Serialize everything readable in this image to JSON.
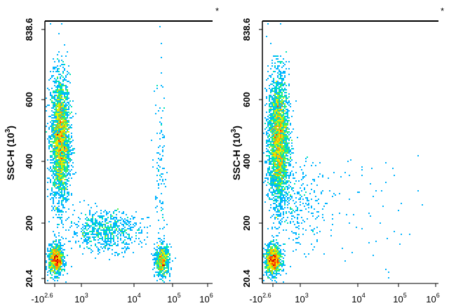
{
  "chart_data": [
    {
      "type": "scatter",
      "ylabel": "SSC-H (10³)",
      "ylabel_base": "SSC-H (10",
      "ylabel_exp": "3",
      "ylabel_close": ")",
      "y_ticks": [
        "838.6",
        "600",
        "400",
        "200",
        "20.4"
      ],
      "x_ticks": [
        {
          "base": "-10",
          "exp": "2.6"
        },
        {
          "base": "10",
          "exp": "3"
        },
        {
          "base": "10",
          "exp": "4"
        },
        {
          "base": "10",
          "exp": "5"
        },
        {
          "base": "10",
          "exp": "6"
        }
      ],
      "x_scale": "log",
      "ylim": [
        20.4,
        838.6
      ],
      "corner_mark": "*",
      "populations": [
        {
          "x": 400,
          "y": 470,
          "sx": 0.09,
          "sy": 105,
          "n": 2600
        },
        {
          "x": 330,
          "y": 80,
          "sx": 0.07,
          "sy": 24,
          "n": 900
        },
        {
          "x": 2900,
          "y": 175,
          "sx": 0.33,
          "sy": 32,
          "n": 700
        },
        {
          "x": 35000,
          "y": 78,
          "sx": 0.07,
          "sy": 26,
          "n": 550
        },
        {
          "x": 32000,
          "y": 330,
          "sx": 0.06,
          "sy": 180,
          "n": 120
        }
      ]
    },
    {
      "type": "scatter",
      "ylabel": "SSC-H (10³)",
      "ylabel_base": "SSC-H (10",
      "ylabel_exp": "3",
      "ylabel_close": ")",
      "y_ticks": [
        "838.6",
        "600",
        "400",
        "200",
        "20.4"
      ],
      "x_ticks": [
        {
          "base": "-10",
          "exp": "2.6"
        },
        {
          "base": "10",
          "exp": "3"
        },
        {
          "base": "10",
          "exp": "4"
        },
        {
          "base": "10",
          "exp": "5"
        },
        {
          "base": "10",
          "exp": "6"
        }
      ],
      "x_scale": "log",
      "ylim": [
        20.4,
        838.6
      ],
      "corner_mark": "*",
      "populations": [
        {
          "x": 420,
          "y": 470,
          "sx": 0.09,
          "sy": 105,
          "n": 2800
        },
        {
          "x": 340,
          "y": 80,
          "sx": 0.07,
          "sy": 24,
          "n": 1000
        },
        {
          "x": 900,
          "y": 260,
          "sx": 0.25,
          "sy": 70,
          "n": 300
        },
        {
          "x": 15000,
          "y": 250,
          "sx": 0.5,
          "sy": 90,
          "n": 60
        }
      ]
    }
  ],
  "colors": {
    "axis": "#000000",
    "density": [
      "#0000c8",
      "#0050ff",
      "#00b4ff",
      "#00e6b4",
      "#50f050",
      "#e6f000",
      "#ffa000",
      "#ff3c00",
      "#d20000"
    ]
  }
}
